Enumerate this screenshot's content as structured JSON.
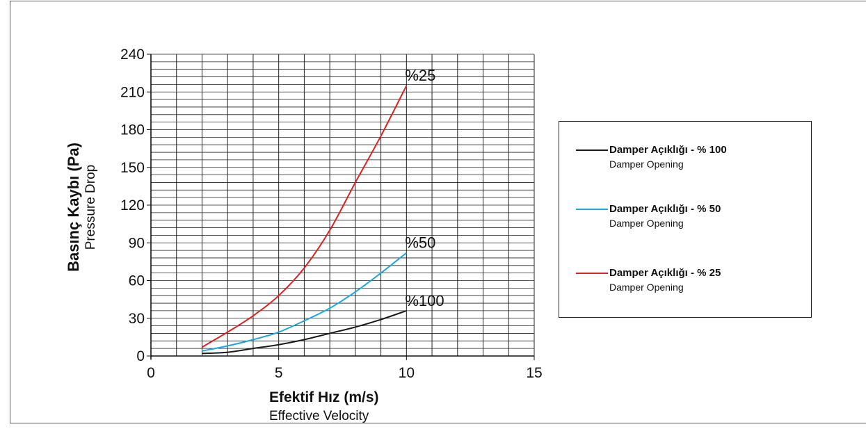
{
  "chart_data": {
    "type": "line",
    "ylabel": "Basınç Kaybı (Pa)",
    "ylabel_sub": "Pressure Drop",
    "xlabel": "Efektif Hız (m/s)",
    "xlabel_sub": "Effective Velocity",
    "xlim": [
      0,
      15
    ],
    "ylim": [
      0,
      240
    ],
    "x_ticks": [
      0,
      5,
      10,
      15
    ],
    "y_ticks": [
      0,
      30,
      60,
      90,
      120,
      150,
      180,
      210,
      240
    ],
    "grid": true,
    "series": [
      {
        "name": "Damper Açıklığı - % 100",
        "name_sub": "Damper Opening",
        "end_label": "%100",
        "color": "#1a1a1a",
        "x": [
          2,
          3,
          4,
          5,
          6,
          7,
          8,
          9,
          10
        ],
        "y": [
          2,
          3,
          6,
          9,
          13,
          18,
          23,
          29,
          36
        ]
      },
      {
        "name": "Damper Açıklığı - % 50",
        "name_sub": "Damper Opening",
        "end_label": "%50",
        "color": "#19a8e0",
        "x": [
          2,
          3,
          4,
          5,
          6,
          7,
          8,
          9,
          10
        ],
        "y": [
          4,
          8,
          13,
          19,
          28,
          38,
          51,
          66,
          82
        ]
      },
      {
        "name": "Damper Açıklığı - % 25",
        "name_sub": "Damper Opening",
        "end_label": "%25",
        "color": "#e02020",
        "x": [
          2,
          2.5,
          3,
          4,
          5,
          6,
          7,
          8,
          9,
          10
        ],
        "y": [
          7,
          13,
          19,
          32,
          48,
          70,
          100,
          138,
          175,
          215
        ]
      }
    ],
    "legend_position": "right"
  }
}
